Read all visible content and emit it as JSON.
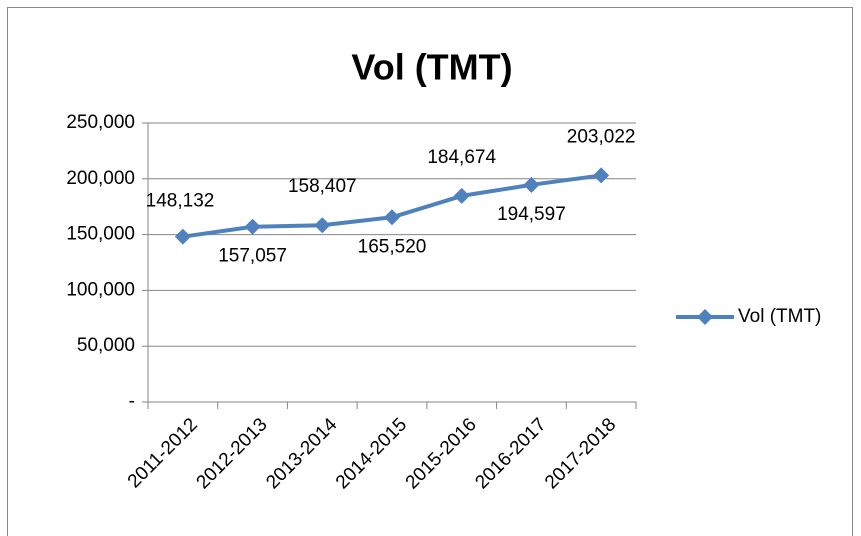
{
  "chart_data": {
    "type": "line",
    "title": "Vol (TMT)",
    "categories": [
      "2011-2012",
      "2012-2013",
      "2013-2014",
      "2014-2015",
      "2015-2016",
      "2016-2017",
      "2017-2018"
    ],
    "series": [
      {
        "name": "Vol (TMT)",
        "color": "#4f81bd",
        "values": [
          148132,
          157057,
          158407,
          165520,
          184674,
          194597,
          203022
        ],
        "value_labels": [
          "148,132",
          "157,057",
          "158,407",
          "165,520",
          "184,674",
          "194,597",
          "203,022"
        ]
      }
    ],
    "ylim": [
      0,
      250000
    ],
    "yticks": [
      {
        "value": 0,
        "label": "-"
      },
      {
        "value": 50000,
        "label": "50,000"
      },
      {
        "value": 100000,
        "label": "100,000"
      },
      {
        "value": 150000,
        "label": "150,000"
      },
      {
        "value": 200000,
        "label": "200,000"
      },
      {
        "value": 250000,
        "label": "250,000"
      }
    ],
    "grid": true,
    "legend": "right"
  }
}
